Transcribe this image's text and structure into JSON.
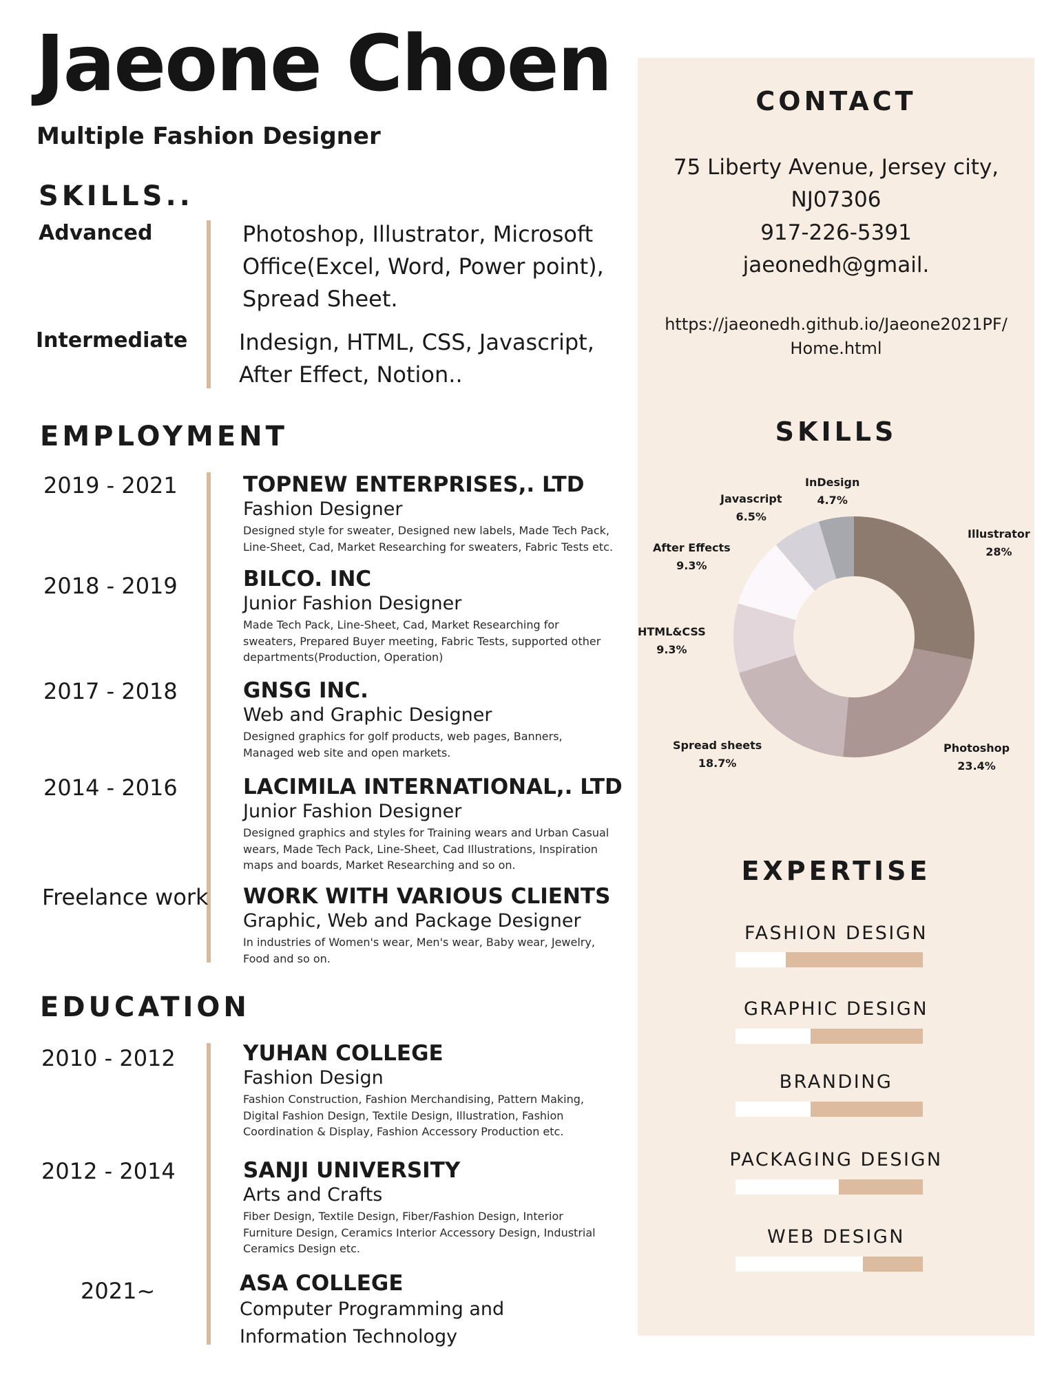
{
  "header": {
    "name": "Jaeone Choen",
    "subtitle": "Multiple Fashion Designer"
  },
  "skills": {
    "heading": "SKILLS..",
    "items": [
      {
        "level": "Advanced",
        "text": "Photoshop, Illustrator, Microsoft Office(Excel, Word, Power point), Spread Sheet."
      },
      {
        "level": "Intermediate",
        "text": "Indesign, HTML, CSS, Javascript, After Effect, Notion.."
      }
    ]
  },
  "employment": {
    "heading": "EMPLOYMENT",
    "jobs": [
      {
        "years": "2019 - 2021",
        "company": "TOPNEW ENTERPRISES,. LTD",
        "role": "Fashion Designer",
        "desc": "Designed style for sweater, Designed new labels, Made Tech Pack, Line-Sheet, Cad, Market Researching for sweaters, Fabric Tests etc."
      },
      {
        "years": "2018 - 2019",
        "company": "BILCO. INC",
        "role": "Junior Fashion Designer",
        "desc": "Made Tech Pack, Line-Sheet, Cad, Market Researching for sweaters, Prepared Buyer meeting, Fabric Tests, supported other departments(Production, Operation)"
      },
      {
        "years": "2017 - 2018",
        "company": "GNSG INC.",
        "role": "Web and Graphic Designer",
        "desc": "Designed graphics for golf products, web pages, Banners, Managed web site and open markets."
      },
      {
        "years": "2014 - 2016",
        "company": "LACIMILA INTERNATIONAL,. LTD",
        "role": "Junior Fashion Designer",
        "desc": "Designed graphics and styles for Training wears and Urban Casual wears, Made Tech Pack, Line-Sheet, Cad Illustrations, Inspiration maps and boards, Market Researching  and so on."
      },
      {
        "years": "Freelance work",
        "company": "WORK WITH VARIOUS CLIENTS",
        "role": "Graphic, Web and Package Designer",
        "desc": " In industries of Women's wear, Men's wear, Baby wear, Jewelry, Food and so on."
      }
    ]
  },
  "education": {
    "heading": "EDUCATION",
    "schools": [
      {
        "years": "2010 - 2012",
        "school": "YUHAN COLLEGE",
        "major": "Fashion Design",
        "desc": "Fashion Construction, Fashion Merchandising, Pattern Making, Digital Fashion Design, Textile Design, Illustration, Fashion Coordination & Display, Fashion Accessory Production etc."
      },
      {
        "years": "2012 - 2014",
        "school": "SANJI UNIVERSITY",
        "major": "Arts and Crafts",
        "desc": "Fiber Design, Textile Design, Fiber/Fashion Design, Interior Furniture Design, Ceramics Interior Accessory Design, Industrial Ceramics Design etc."
      },
      {
        "years": "2021~",
        "school": "ASA COLLEGE",
        "major": "Computer Programming and Information Technology",
        "desc": ""
      }
    ]
  },
  "contact": {
    "heading": "CONTACT",
    "address1": "75 Liberty Avenue, Jersey city,",
    "address2": "NJ07306",
    "phone": "917-226-5391",
    "email": "jaeonedh@gmail.",
    "url1": "https://jaeonedh.github.io/Jaeone2021PF/",
    "url2": "Home.html"
  },
  "skills_chart": {
    "heading": "SKILLS"
  },
  "chart_data": {
    "type": "pie",
    "donut": true,
    "categories": [
      "Illustrator",
      "Photoshop",
      "Spread sheets",
      "HTML&CSS",
      "After Effects",
      "Javascript",
      "InDesign"
    ],
    "values": [
      28,
      23.4,
      18.7,
      9.3,
      9.3,
      6.5,
      4.7
    ],
    "value_labels": [
      "28%",
      "23.4%",
      "18.7%",
      "9.3%",
      "9.3%",
      "6.5%",
      "4.7%"
    ],
    "colors": [
      "#8e7b70",
      "#ab9693",
      "#c7b6b7",
      "#e2d6da",
      "#fcf7fa",
      "#d5d3d9",
      "#a6a8ae"
    ]
  },
  "expertise": {
    "heading": "EXPERTISE",
    "items": [
      {
        "label": "FASHION DESIGN",
        "level": 0.73
      },
      {
        "label": "GRAPHIC DESIGN",
        "level": 0.6
      },
      {
        "label": "BRANDING",
        "level": 0.6
      },
      {
        "label": "PACKAGING DESIGN",
        "level": 0.45
      },
      {
        "label": "WEB DESIGN",
        "level": 0.32
      }
    ]
  }
}
